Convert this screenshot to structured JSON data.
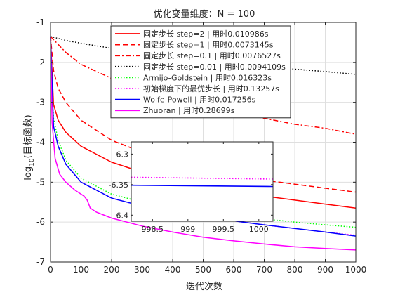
{
  "chart_data": {
    "type": "line",
    "title": "优化变量维度：N = 100",
    "xlabel": "迭代次数",
    "ylabel_main": "log",
    "ylabel_sub": "10",
    "ylabel_rest": "(目标函数)",
    "xlim": [
      0,
      1000
    ],
    "ylim": [
      -7,
      -1
    ],
    "xticks": [
      0,
      100,
      200,
      300,
      400,
      500,
      600,
      700,
      800,
      900,
      1000
    ],
    "yticks": [
      -7,
      -6,
      -5,
      -4,
      -3,
      -2,
      -1
    ],
    "grid": true,
    "legend_position": "top-right",
    "series": [
      {
        "name": "固定步长 step=2 | 用时0.010986s",
        "color": "#ff0000",
        "dash": "solid",
        "x": [
          0,
          10,
          25,
          50,
          100,
          200,
          300,
          400,
          500,
          600,
          700,
          800,
          900,
          1000
        ],
        "y": [
          -1.35,
          -3.05,
          -3.45,
          -3.75,
          -4.1,
          -4.5,
          -4.75,
          -4.95,
          -5.1,
          -5.25,
          -5.35,
          -5.45,
          -5.55,
          -5.65
        ]
      },
      {
        "name": "固定步长 step=1 | 用时0.0073145s",
        "color": "#ff0000",
        "dash": "dashed",
        "x": [
          0,
          10,
          25,
          50,
          100,
          200,
          300,
          400,
          500,
          600,
          700,
          800,
          900,
          1000
        ],
        "y": [
          -1.35,
          -2.2,
          -2.65,
          -3.0,
          -3.45,
          -3.95,
          -4.25,
          -4.5,
          -4.7,
          -4.85,
          -4.95,
          -5.05,
          -5.15,
          -5.25
        ]
      },
      {
        "name": "固定步长 step=0.1 | 用时0.0076527s",
        "color": "#ff0000",
        "dash": "dashdot",
        "x": [
          0,
          50,
          100,
          200,
          300,
          400,
          500,
          600,
          700,
          800,
          900,
          1000
        ],
        "y": [
          -1.35,
          -1.75,
          -2.05,
          -2.4,
          -2.65,
          -2.85,
          -3.05,
          -3.25,
          -3.4,
          -3.55,
          -3.65,
          -3.8
        ]
      },
      {
        "name": "固定步长 step=0.01 | 用时0.0094109s",
        "color": "#000000",
        "dash": "dotted",
        "x": [
          0,
          50,
          100,
          200,
          300,
          400,
          500,
          600,
          700,
          800,
          900,
          1000
        ],
        "y": [
          -1.35,
          -1.45,
          -1.52,
          -1.65,
          -1.77,
          -1.87,
          -1.95,
          -2.03,
          -2.1,
          -2.17,
          -2.23,
          -2.3
        ]
      },
      {
        "name": "Armijo-Goldstein | 用时0.016323s",
        "color": "#00ff00",
        "dash": "dotted",
        "x": [
          0,
          10,
          25,
          50,
          100,
          200,
          300,
          400,
          500,
          600,
          700,
          800,
          900,
          1000
        ],
        "y": [
          -1.35,
          -3.4,
          -3.95,
          -4.45,
          -4.9,
          -5.3,
          -5.5,
          -5.65,
          -5.75,
          -5.85,
          -5.92,
          -6.0,
          -6.07,
          -6.13
        ]
      },
      {
        "name": "初始梯度下的最优步长 | 用时0.13257s",
        "color": "#ff00ff",
        "dash": "dotted",
        "x": [
          0,
          10,
          25,
          50,
          100,
          200,
          300,
          400,
          500,
          600,
          700,
          800,
          900,
          1000
        ],
        "y": [
          -1.35,
          -3.6,
          -4.1,
          -4.55,
          -5.0,
          -5.4,
          -5.6,
          -5.75,
          -5.87,
          -5.97,
          -6.07,
          -6.16,
          -6.25,
          -6.33
        ]
      },
      {
        "name": "Wolfe-Powell | 用时0.017256s",
        "color": "#0000ff",
        "dash": "solid",
        "x": [
          0,
          10,
          25,
          50,
          100,
          200,
          300,
          400,
          500,
          600,
          700,
          800,
          900,
          1000
        ],
        "y": [
          -1.35,
          -3.6,
          -4.1,
          -4.55,
          -5.0,
          -5.4,
          -5.6,
          -5.75,
          -5.87,
          -5.97,
          -6.07,
          -6.16,
          -6.25,
          -6.35
        ]
      },
      {
        "name": "Zhuoran | 用时0.28699s",
        "color": "#ff00ff",
        "dash": "solid",
        "x": [
          0,
          5,
          15,
          30,
          50,
          80,
          110,
          120,
          130,
          150,
          200,
          300,
          400,
          500,
          600,
          700,
          800,
          900,
          1000
        ],
        "y": [
          -1.35,
          -3.5,
          -4.4,
          -4.8,
          -5.0,
          -5.2,
          -5.35,
          -5.45,
          -5.65,
          -5.75,
          -5.9,
          -6.1,
          -6.25,
          -6.38,
          -6.47,
          -6.55,
          -6.62,
          -6.66,
          -6.7
        ]
      }
    ],
    "inset": {
      "xlim": [
        998.2,
        1000.2
      ],
      "ylim": [
        -6.41,
        -6.28
      ],
      "xticks": [
        998.5,
        999,
        999.5,
        1000
      ],
      "xtick_labels": [
        "998.5",
        "999",
        "999.5",
        "1000"
      ],
      "yticks": [
        -6.3,
        -6.35,
        -6.4
      ],
      "ytick_labels": [
        "-6.3",
        "-6.35",
        "-6.4"
      ],
      "series": [
        {
          "color": "#ff00ff",
          "dash": "dotted",
          "x": [
            998.2,
            1000.2
          ],
          "y": [
            -6.338,
            -6.341
          ]
        },
        {
          "color": "#0000ff",
          "dash": "solid",
          "x": [
            998.2,
            1000.2
          ],
          "y": [
            -6.351,
            -6.353
          ]
        }
      ]
    }
  }
}
